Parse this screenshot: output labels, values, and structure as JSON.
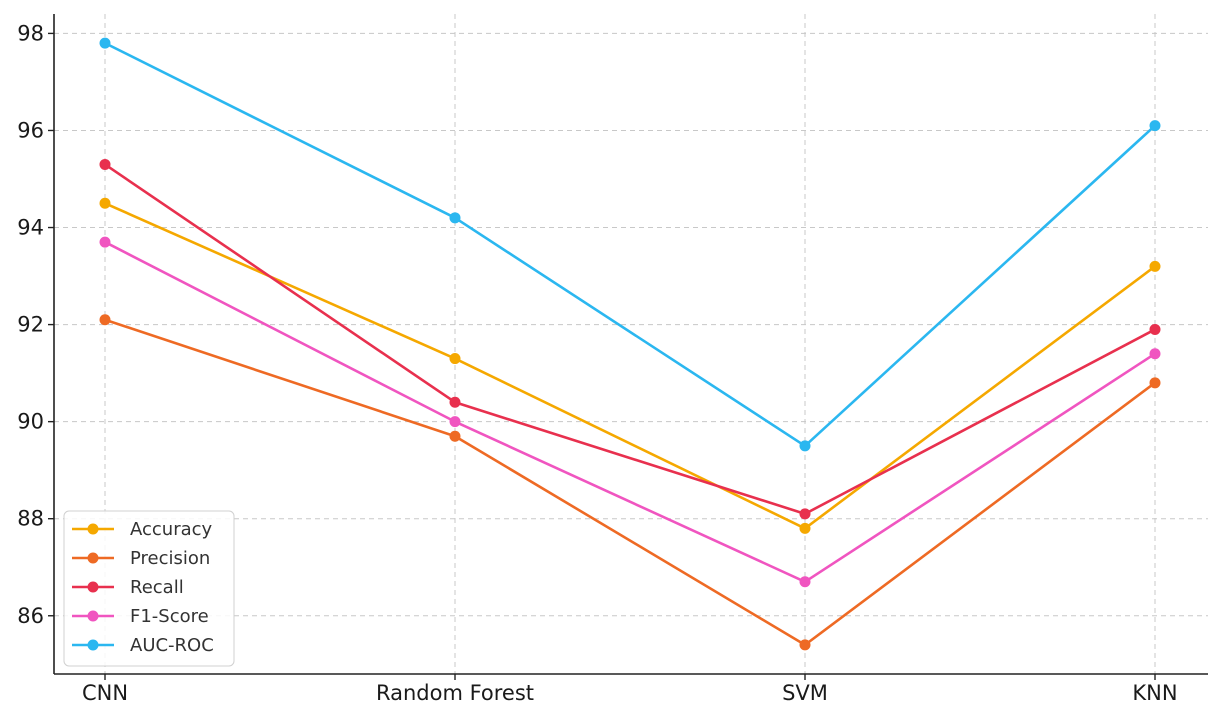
{
  "chart_data": {
    "type": "line",
    "categories": [
      "CNN",
      "Random Forest",
      "SVM",
      "KNN"
    ],
    "series": [
      {
        "name": "Accuracy",
        "color": "#f5a800",
        "values": [
          94.5,
          91.3,
          87.8,
          93.2
        ]
      },
      {
        "name": "Precision",
        "color": "#ee6a24",
        "values": [
          92.1,
          89.7,
          85.4,
          90.8
        ]
      },
      {
        "name": "Recall",
        "color": "#e8304e",
        "values": [
          95.3,
          90.4,
          88.1,
          91.9
        ]
      },
      {
        "name": "F1-Score",
        "color": "#f055c0",
        "values": [
          93.7,
          90.0,
          86.7,
          91.4
        ]
      },
      {
        "name": "AUC-ROC",
        "color": "#2bb7f0",
        "values": [
          97.8,
          94.2,
          89.5,
          96.1
        ]
      }
    ],
    "y_ticks": [
      "86",
      "88",
      "90",
      "92",
      "94",
      "96",
      "98"
    ],
    "ylim": [
      84.8,
      98.4
    ],
    "grid": true,
    "legend_position": "lower-left",
    "title": "",
    "xlabel": "",
    "ylabel": ""
  }
}
